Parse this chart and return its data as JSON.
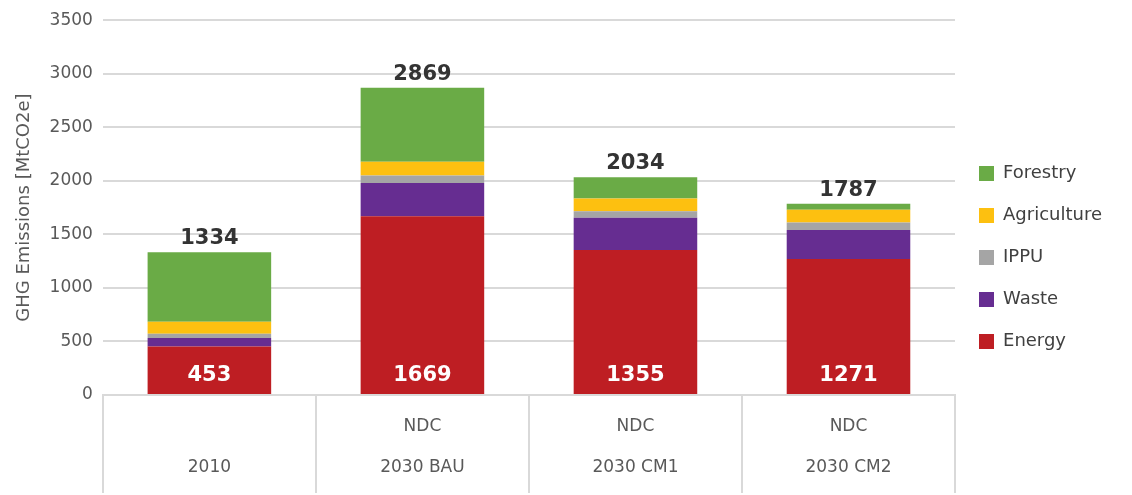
{
  "chart_data": {
    "type": "bar",
    "stacked": true,
    "ylabel": "GHG Emissions [MtCO2e]",
    "categories": [
      "2010",
      "2030 BAU",
      "2030 CM1",
      "2030 CM2"
    ],
    "series": [
      {
        "name": "Energy",
        "color": "#be1e23",
        "values": [
          453,
          1669,
          1355,
          1271
        ],
        "value_labels": [
          "453",
          "1669",
          "1355",
          "1271"
        ]
      },
      {
        "name": "Waste",
        "color": "#662d91",
        "values": [
          80,
          310,
          300,
          270
        ]
      },
      {
        "name": "IPPU",
        "color": "#a5a5a5",
        "values": [
          40,
          70,
          60,
          70
        ]
      },
      {
        "name": "Agriculture",
        "color": "#fdc010",
        "values": [
          110,
          130,
          120,
          120
        ]
      },
      {
        "name": "Forestry",
        "color": "#6aab46",
        "values": [
          651,
          690,
          199,
          56
        ]
      }
    ],
    "totals": [
      "1334",
      "2869",
      "2034",
      "1787"
    ],
    "annotations": [
      "NDC",
      "NDC",
      "NDC"
    ],
    "ylim": [
      0,
      3500
    ],
    "yticks": [
      0,
      500,
      1000,
      1500,
      2000,
      2500,
      3000,
      3500
    ],
    "grid": "y",
    "legend": "right"
  }
}
